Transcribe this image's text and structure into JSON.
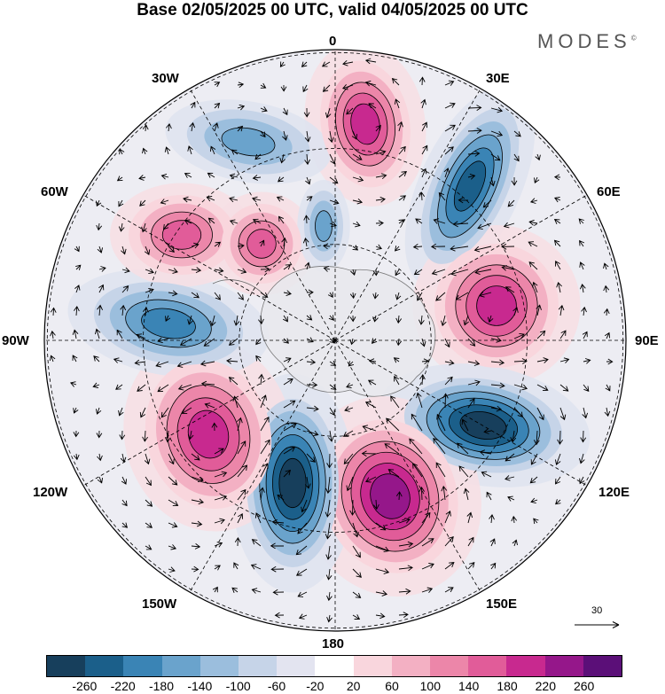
{
  "title": "Base 02/05/2025 00 UTC, valid 04/05/2025 00 UTC",
  "brand": "MODES",
  "brand_mark": "©",
  "longitude_labels": {
    "top": "0",
    "bottom": "180",
    "left": "90W",
    "right": "90E",
    "upper_left_30": "30W",
    "upper_right_30": "30E",
    "upper_left_60": "60W",
    "upper_right_60": "60E",
    "lower_left_120": "120W",
    "lower_right_120": "120E",
    "lower_left_150": "150W",
    "lower_right_150": "150E"
  },
  "reference_vector_label": "30",
  "colorbar": {
    "colors": [
      "#173f5c",
      "#1b5f8a",
      "#3a84b5",
      "#6aa3cc",
      "#9bbedd",
      "#c6d4e8",
      "#e3e4f0",
      "#ffffff",
      "#f9d6dd",
      "#f3b0c3",
      "#ec86a9",
      "#e15c99",
      "#c8298f",
      "#95178a",
      "#5b0f78"
    ],
    "ticks": [
      "-260",
      "-220",
      "-180",
      "-140",
      "-100",
      "-60",
      "-20",
      "20",
      "60",
      "100",
      "140",
      "180",
      "220",
      "260"
    ]
  },
  "anomaly_centers": [
    {
      "sign": "positive",
      "strength": 0.75,
      "region": "near 15E"
    },
    {
      "sign": "negative",
      "strength": 0.85,
      "region": "near 45E"
    },
    {
      "sign": "positive",
      "strength": 0.8,
      "region": "near 80E"
    },
    {
      "sign": "negative",
      "strength": 1.0,
      "region": "near 120E"
    },
    {
      "sign": "positive",
      "strength": 1.0,
      "region": "near 160E"
    },
    {
      "sign": "negative",
      "strength": 1.0,
      "region": "near 170W"
    },
    {
      "sign": "positive",
      "strength": 0.85,
      "region": "near 125W"
    },
    {
      "sign": "negative",
      "strength": 0.65,
      "region": "near 90W"
    },
    {
      "sign": "positive",
      "strength": 0.6,
      "region": "near 55W"
    },
    {
      "sign": "positive",
      "strength": 0.6,
      "region": "near 40W"
    },
    {
      "sign": "negative",
      "strength": 0.5,
      "region": "near 20W"
    },
    {
      "sign": "negative",
      "strength": 0.45,
      "region": "near 10W"
    }
  ]
}
